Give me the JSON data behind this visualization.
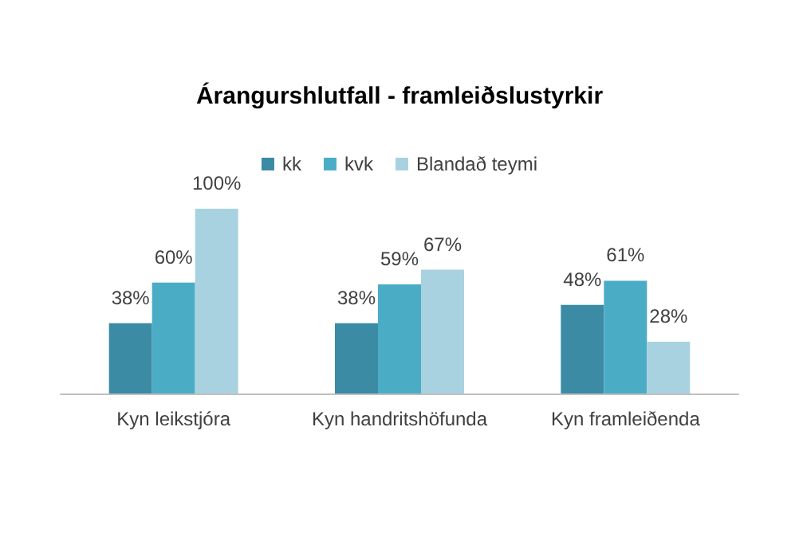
{
  "chart_data": {
    "type": "bar",
    "title": "Árangurshlutfall - framleiðslustyrkir",
    "categories": [
      "Kyn leikstjóra",
      "Kyn handritshöfunda",
      "Kyn framleiðenda"
    ],
    "series": [
      {
        "name": "kk",
        "color": "#3a8ba3",
        "values": [
          38,
          38,
          48
        ],
        "value_labels": [
          "38%",
          "38%",
          "48%"
        ]
      },
      {
        "name": "kvk",
        "color": "#4bacc6",
        "values": [
          60,
          59,
          61
        ],
        "value_labels": [
          "60%",
          "59%",
          "61%"
        ]
      },
      {
        "name": "Blandað teymi",
        "color": "#a9d2e0",
        "values": [
          100,
          67,
          28
        ],
        "value_labels": [
          "100%",
          "67%",
          "28%"
        ]
      }
    ],
    "legend": "top",
    "grid": false
  }
}
